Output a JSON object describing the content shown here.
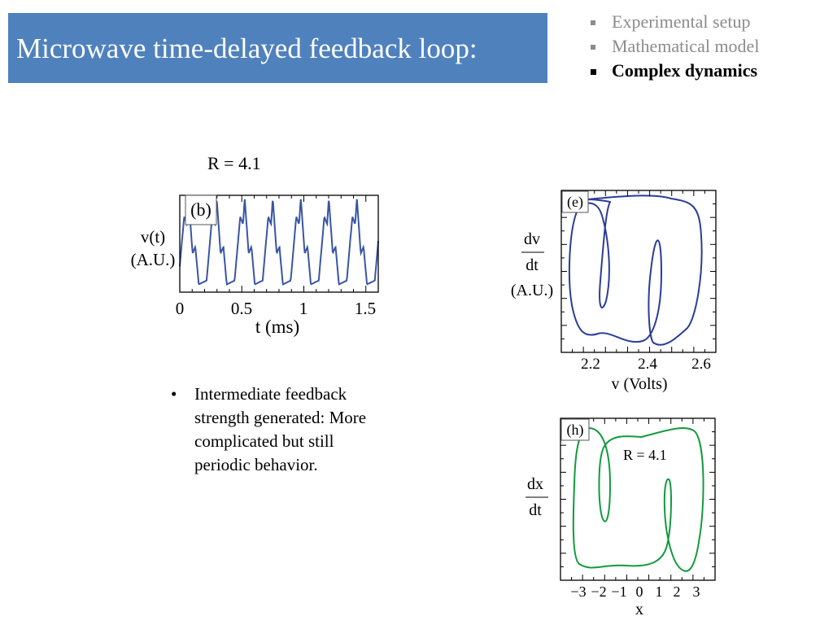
{
  "header": {
    "title": "Microwave time-delayed feedback loop:"
  },
  "nav": {
    "items": [
      {
        "label": "Experimental setup",
        "active": false
      },
      {
        "label": "Mathematical model",
        "active": false
      },
      {
        "label": "Complex dynamics",
        "active": true
      }
    ]
  },
  "main": {
    "r_label": "R = 4.1",
    "bullet": "Intermediate feedback strength generated: More complicated but still periodic behavior."
  },
  "chart_data": [
    {
      "panel": "(b)",
      "type": "line",
      "xlabel": "t (ms)",
      "ylabel": "v(t)",
      "ylabel_units": "(A.U.)",
      "xlim": [
        0,
        1.6
      ],
      "ylim": [
        0,
        1
      ],
      "xticks": [
        "0",
        "0.5",
        "1",
        "1.5"
      ],
      "period_ms": 0.226,
      "series": [
        {
          "color": "#3a55a4",
          "waveform_one_period": [
            [
              0,
              0.12
            ],
            [
              0.2,
              0.78
            ],
            [
              0.3,
              0.7
            ],
            [
              0.36,
              0.97
            ],
            [
              0.5,
              0.4
            ],
            [
              0.6,
              0.47
            ],
            [
              0.72,
              0.08
            ],
            [
              1,
              0.12
            ]
          ]
        }
      ]
    },
    {
      "panel": "(e)",
      "type": "line",
      "xlabel": "v (Volts)",
      "ylabel_num": "dv",
      "ylabel_den": "dt",
      "ylabel_units": "(A.U.)",
      "xlim": [
        2.15,
        2.65
      ],
      "xticks": [
        2.2,
        2.4,
        2.6
      ],
      "series": [
        {
          "color": "#2c3c99"
        }
      ]
    },
    {
      "panel": "(h)",
      "type": "line",
      "annotation": "R = 4.1",
      "xlabel": "x",
      "ylabel_num": "dx",
      "ylabel_den": "dt",
      "xlim": [
        -3.7,
        3.7
      ],
      "xticks": [
        "−3",
        "−2",
        "−1",
        "0",
        "1",
        "2",
        "3"
      ],
      "series": [
        {
          "color": "#139a3f"
        }
      ]
    }
  ]
}
